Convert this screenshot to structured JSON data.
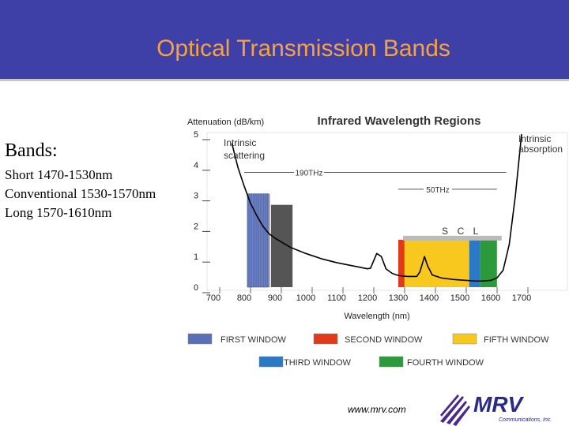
{
  "header": {
    "title": "Optical Transmission Bands"
  },
  "bands": {
    "heading": "Bands:",
    "lines": [
      "Short 1470-1530nm",
      "Conventional 1530-1570nm",
      "Long 1570-1610nm"
    ]
  },
  "colors": {
    "header_bg": "#3f3fa8",
    "title": "#f5a341",
    "first_window": "#5a6fb5",
    "second_window": "#e03a1a",
    "third_window": "#2b78c4",
    "fourth_window": "#2a9a3a",
    "fifth_window": "#f8c81f",
    "curve": "#000000"
  },
  "chart_data": {
    "type": "line",
    "title": "Infrared Wavelength Regions",
    "ylabel": "Attenuation (dB/km)",
    "xlabel": "Wavelength (nm)",
    "xlim": [
      700,
      1700
    ],
    "ylim": [
      0,
      5
    ],
    "x_ticks": [
      "700",
      "800",
      "900",
      "1000",
      "1100",
      "1200",
      "1300",
      "1400",
      "1500",
      "1600",
      "1700"
    ],
    "y_ticks": [
      "0",
      "1",
      "2",
      "3",
      "4",
      "5"
    ],
    "series": [
      {
        "name": "",
        "x": [
          760,
          780,
          800,
          820,
          840,
          860,
          880,
          900,
          950,
          1000,
          1050,
          1100,
          1150,
          1200,
          1210,
          1230,
          1245,
          1260,
          1280,
          1300,
          1330,
          1360,
          1370,
          1385,
          1395,
          1410,
          1440,
          1480,
          1520,
          1550,
          1570,
          1600,
          1620,
          1640,
          1660,
          1680,
          1700
        ],
        "y": [
          4.7,
          3.9,
          3.3,
          2.75,
          2.35,
          2.0,
          1.75,
          1.6,
          1.3,
          1.1,
          0.93,
          0.8,
          0.7,
          0.6,
          0.62,
          1.1,
          1.0,
          0.6,
          0.45,
          0.38,
          0.35,
          0.35,
          0.5,
          1.0,
          0.7,
          0.4,
          0.3,
          0.25,
          0.22,
          0.2,
          0.2,
          0.22,
          0.3,
          0.55,
          1.4,
          3.0,
          5.0
        ]
      }
    ],
    "windows": [
      {
        "label": "FIRST WINDOW",
        "x_start": 810,
        "x_end": 880,
        "height": 3.05,
        "color": "#5a6fb5"
      },
      {
        "label": "SECOND WINDOW",
        "x_start": 1300,
        "x_end": 1320,
        "height": 1.55,
        "color": "#e03a1a"
      },
      {
        "label": "THIRD WINDOW",
        "x_start": 1530,
        "x_end": 1565,
        "height": 1.55,
        "color": "#2b78c4"
      },
      {
        "label": "FOURTH WINDOW",
        "x_start": 1565,
        "x_end": 1620,
        "height": 1.55,
        "color": "#2a9a3a"
      },
      {
        "label": "FIFTH WINDOW",
        "x_start": 1320,
        "x_end": 1530,
        "height": 1.55,
        "color": "#f8c81f"
      }
    ],
    "annotations": [
      {
        "text": "Intrinsic scattering"
      },
      {
        "text": "Intrinsic absorption"
      },
      {
        "text": "190THz",
        "x_start": 800,
        "x_end": 1650,
        "y": 3.75
      },
      {
        "text": "50THz",
        "x_start": 1300,
        "x_end": 1620,
        "y": 3.2
      }
    ],
    "band_letters": [
      "S",
      "C",
      "L"
    ]
  },
  "footer": {
    "url": "www.mrv.com",
    "logo_text": "MRV",
    "logo_sub": "Communications, Inc."
  }
}
